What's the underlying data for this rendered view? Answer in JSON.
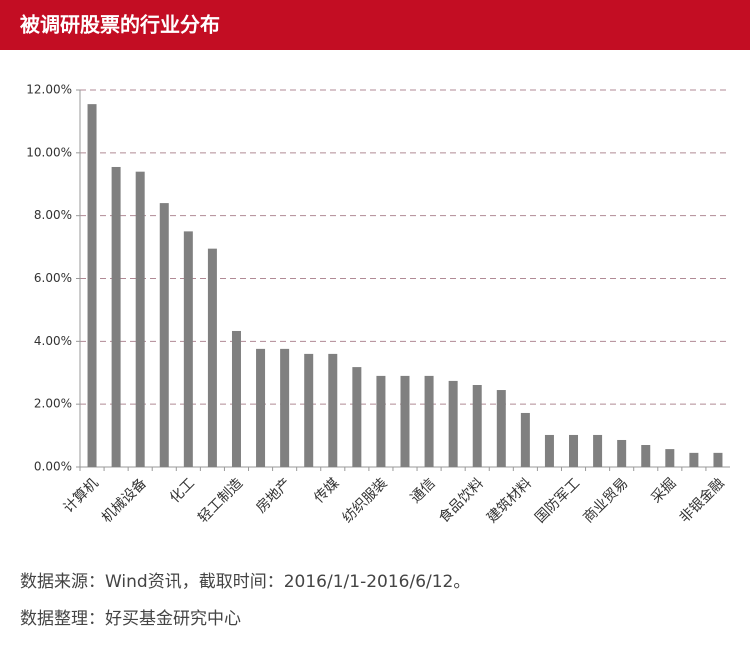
{
  "chart_data": {
    "type": "bar",
    "title": "被调研股票的行业分布",
    "categories": [
      "计算机",
      null,
      "机械设备",
      null,
      "化工",
      null,
      "轻工制造",
      null,
      "房地产",
      null,
      "传媒",
      null,
      "纺织服装",
      null,
      "通信",
      null,
      "食品饮料",
      null,
      "建筑材料",
      null,
      "国防军工",
      null,
      "商业贸易",
      null,
      "采掘",
      null,
      "非银金融"
    ],
    "values": [
      11.55,
      9.55,
      9.4,
      8.4,
      7.5,
      6.95,
      4.33,
      3.76,
      3.76,
      3.6,
      3.6,
      3.18,
      2.9,
      2.9,
      2.9,
      2.74,
      2.61,
      2.45,
      1.72,
      1.02,
      1.02,
      1.02,
      0.86,
      0.7,
      0.57,
      0.45,
      0.45
    ],
    "color": "#808080",
    "ylim": [
      0,
      12
    ],
    "yticks": [
      {
        "value": 0,
        "label": "0.00%"
      },
      {
        "value": 2,
        "label": "2.00%"
      },
      {
        "value": 4,
        "label": "4.00%"
      },
      {
        "value": 6,
        "label": "6.00%"
      },
      {
        "value": 8,
        "label": "8.00%"
      },
      {
        "value": 10,
        "label": "10.00%"
      },
      {
        "value": 12,
        "label": "12.00%"
      }
    ],
    "grid": true
  },
  "notes": [
    "数据来源：Wind资讯，截取时间：2016/1/1-2016/6/12。",
    "数据整理：好买基金研究中心"
  ]
}
